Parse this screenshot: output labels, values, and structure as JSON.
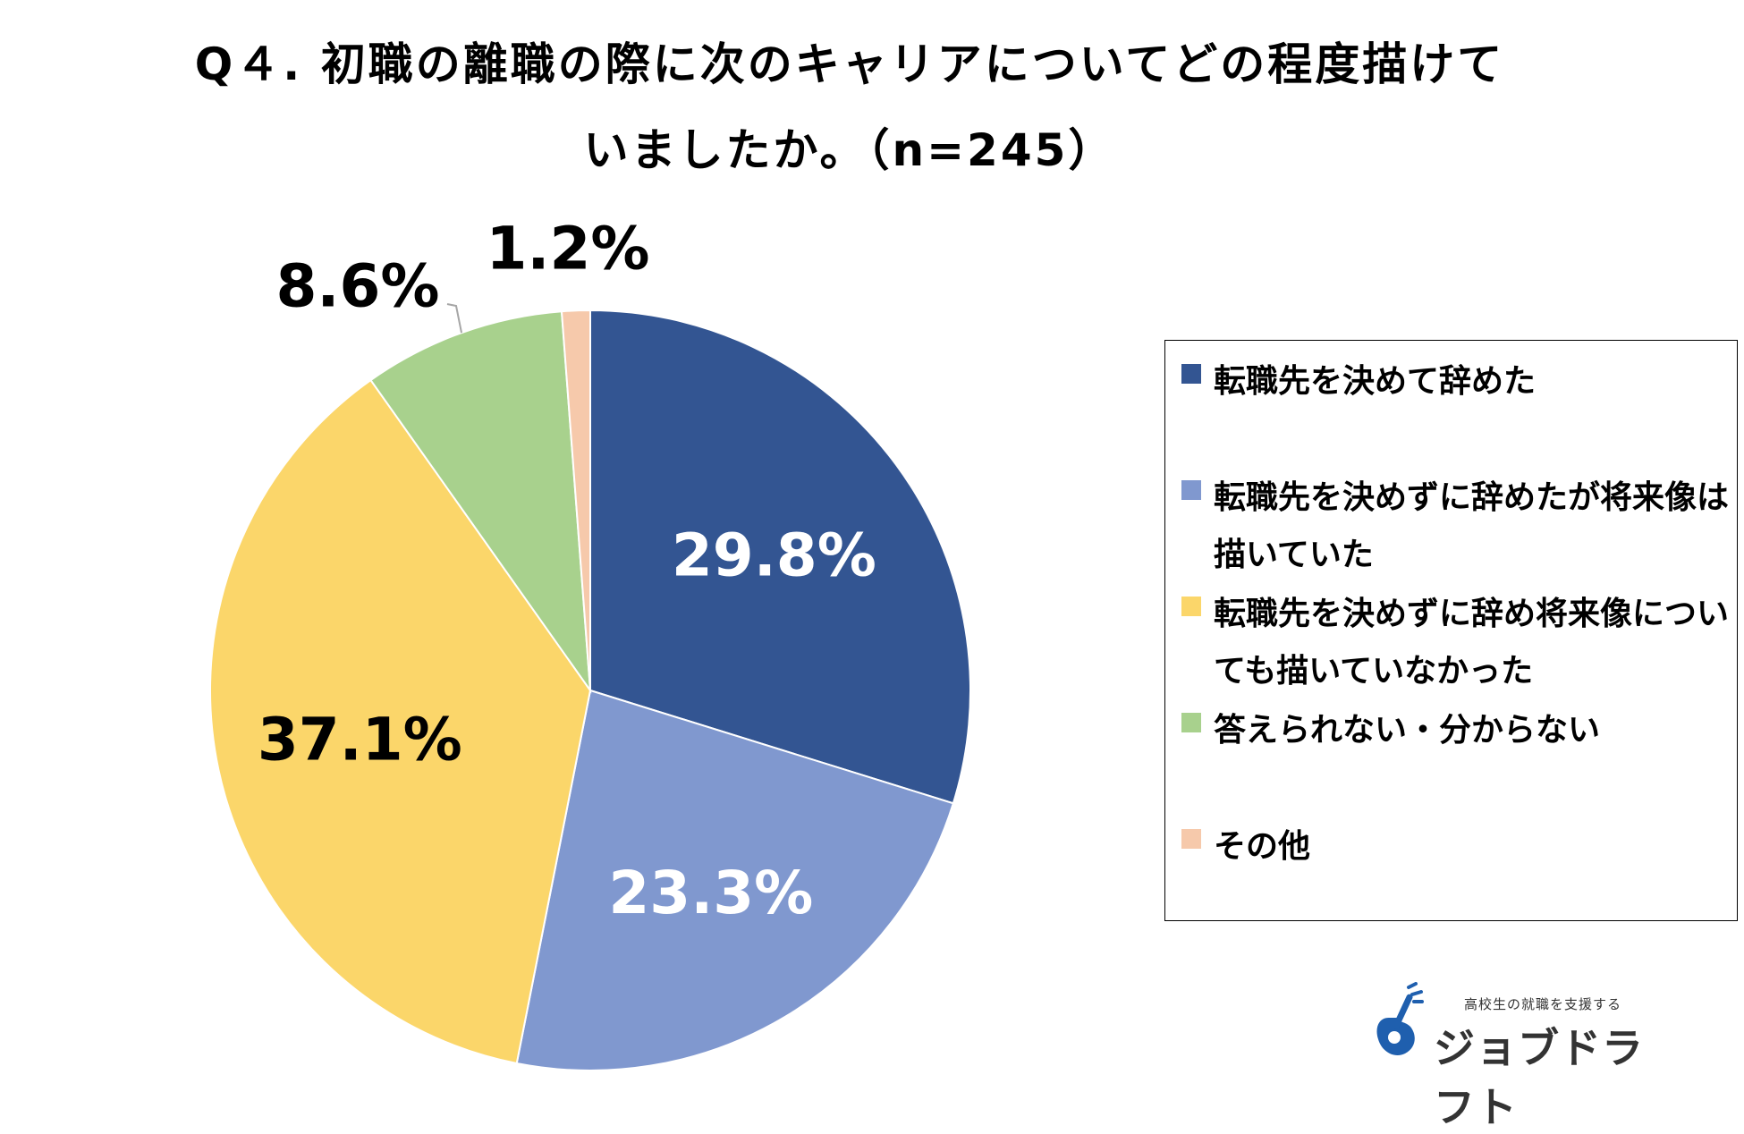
{
  "title": {
    "line1": "Q４. 初職の離職の際に次のキャリアについてどの程度描けて",
    "line2": "いましたか。（n=245）"
  },
  "chart_data": {
    "type": "pie",
    "categories": [
      "転職先を決めて辞めた",
      "転職先を決めずに辞めたが将来像は描いていた",
      "転職先を決めずに辞め将来像についても描いていなかった",
      "答えられない・分からない",
      "その他"
    ],
    "values": [
      29.8,
      23.3,
      37.1,
      8.6,
      1.2
    ],
    "labels": [
      "29.8%",
      "23.3%",
      "37.1%",
      "8.6%",
      "1.2%"
    ],
    "colors": [
      "#335592",
      "#8098cf",
      "#fbd66a",
      "#a8d18d",
      "#f6c9ab"
    ],
    "label_colors": [
      "#ffffff",
      "#ffffff",
      "#000000",
      "#000000",
      "#000000"
    ],
    "legend_position": "right"
  },
  "legend": {
    "items": [
      {
        "label": "転職先を決めて辞めた",
        "color": "#335592"
      },
      {
        "label": "転職先を決めずに辞めたが将来像は描いていた",
        "color": "#8098cf"
      },
      {
        "label": "転職先を決めずに辞め将来像についても描いていなかった",
        "color": "#fbd66a"
      },
      {
        "label": "答えられない・分からない",
        "color": "#a8d18d"
      },
      {
        "label": "その他",
        "color": "#f6c9ab"
      }
    ]
  },
  "logo": {
    "tagline": "高校生の就職を支援する",
    "name": "ジョブドラフト",
    "icon": "guitar-note-icon",
    "color": "#1f5fae"
  }
}
